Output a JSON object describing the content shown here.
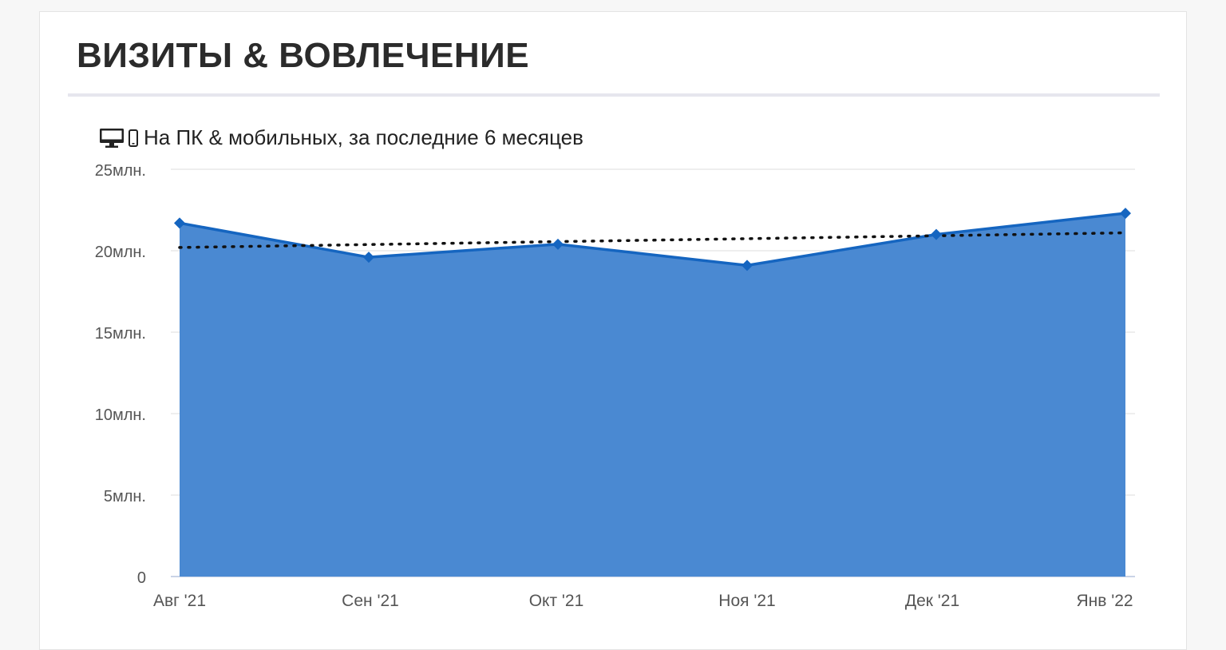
{
  "header": {
    "title": "ВИЗИТЫ & ВОВЛЕЧЕНИЕ",
    "subtitle": "На ПК & мобильных, за последние 6 месяцев",
    "icons": [
      "desktop-icon",
      "mobile-icon"
    ]
  },
  "chart_data": {
    "type": "area",
    "categories": [
      "Авг '21",
      "Сен '21",
      "Окт '21",
      "Ноя '21",
      "Дек '21",
      "Янв '22"
    ],
    "series": [
      {
        "values": [
          21.7,
          19.6,
          20.4,
          19.1,
          21.0,
          22.3
        ],
        "color": "#4a89d2",
        "line_color": "#1565c0"
      }
    ],
    "trend": {
      "values": [
        20.2,
        21.1
      ],
      "style": "dotted",
      "color": "#111111"
    },
    "ylim": [
      0,
      25
    ],
    "y_ticks": [
      {
        "value": 0,
        "label": "0"
      },
      {
        "value": 5,
        "label": "5млн."
      },
      {
        "value": 10,
        "label": "10млн."
      },
      {
        "value": 15,
        "label": "15млн."
      },
      {
        "value": 20,
        "label": "20млн."
      },
      {
        "value": 25,
        "label": "25млн."
      }
    ],
    "grid": true,
    "xlabel": "",
    "ylabel": ""
  }
}
